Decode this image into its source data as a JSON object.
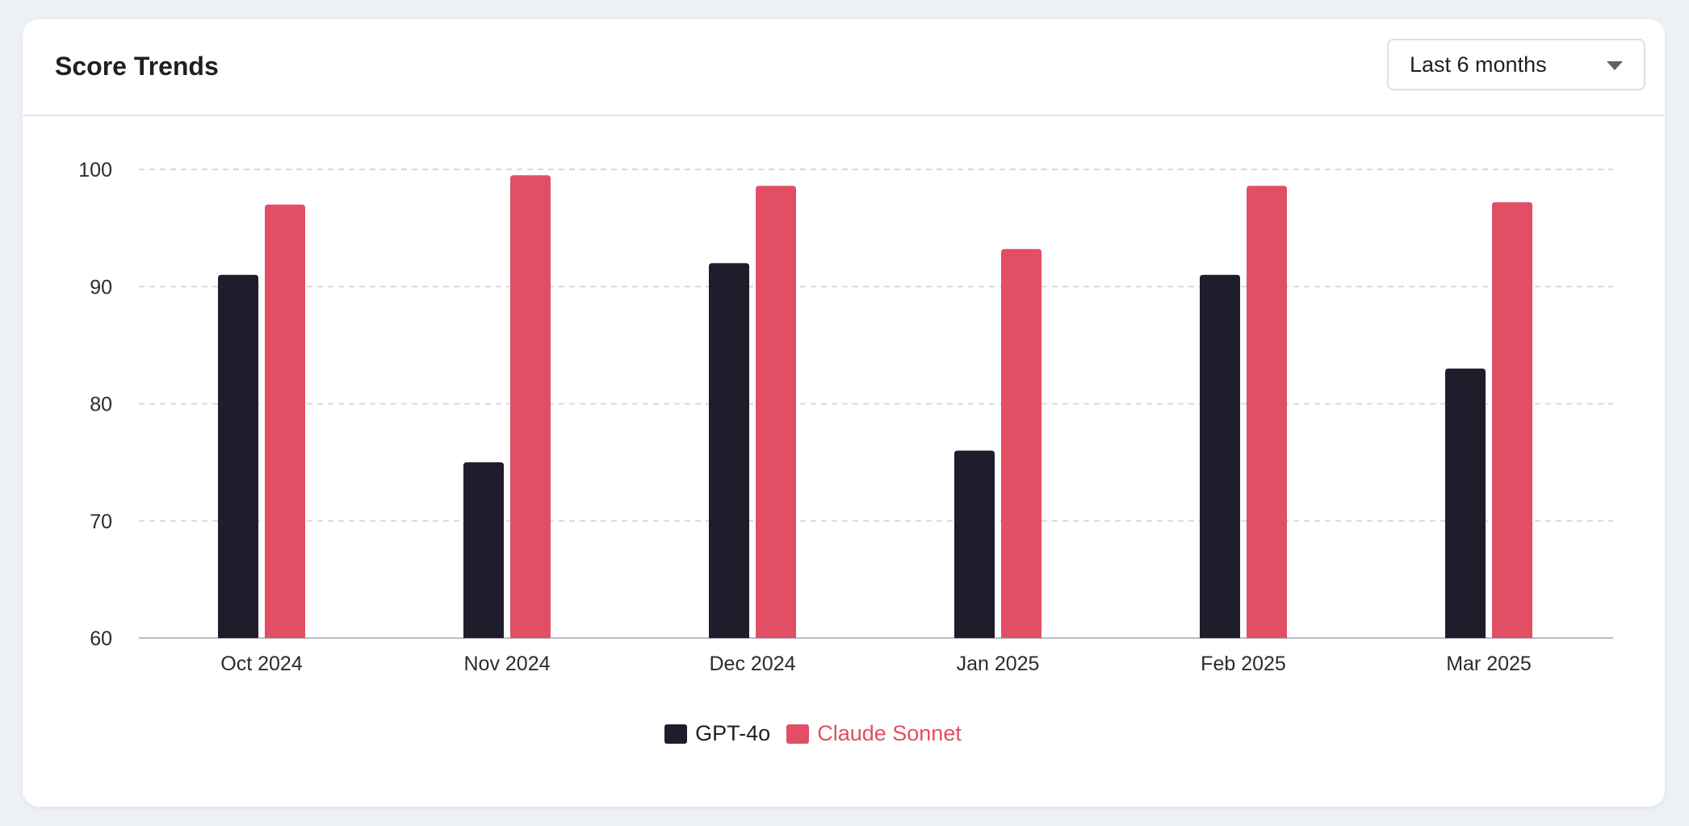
{
  "card": {
    "title": "Score Trends",
    "range_select": {
      "value": "Last 6 months",
      "icon": "chevron-down-icon"
    }
  },
  "colors": {
    "gpt": "#1f1d2b",
    "claude": "#e24e63",
    "grid": "#d6d8dc",
    "card_bg": "#ffffff",
    "page_bg": "#edf0f4"
  },
  "chart_data": {
    "type": "bar",
    "title": "Score Trends",
    "categories": [
      "Oct 2024",
      "Nov 2024",
      "Dec 2024",
      "Jan 2025",
      "Feb 2025",
      "Mar 2025"
    ],
    "series": [
      {
        "name": "GPT-4o",
        "values": [
          91,
          75,
          92,
          76,
          91,
          83
        ],
        "color": "#1f1d2b"
      },
      {
        "name": "Claude Sonnet",
        "values": [
          97,
          99.5,
          98.6,
          93.2,
          98.6,
          97.2
        ],
        "color": "#e24e63"
      }
    ],
    "ylim": [
      60,
      100
    ],
    "yticks": [
      100,
      90,
      80,
      70,
      60
    ],
    "grid": true,
    "gridline_style": "dashed",
    "legend_position": "bottom-center",
    "xlabel": "",
    "ylabel": ""
  }
}
